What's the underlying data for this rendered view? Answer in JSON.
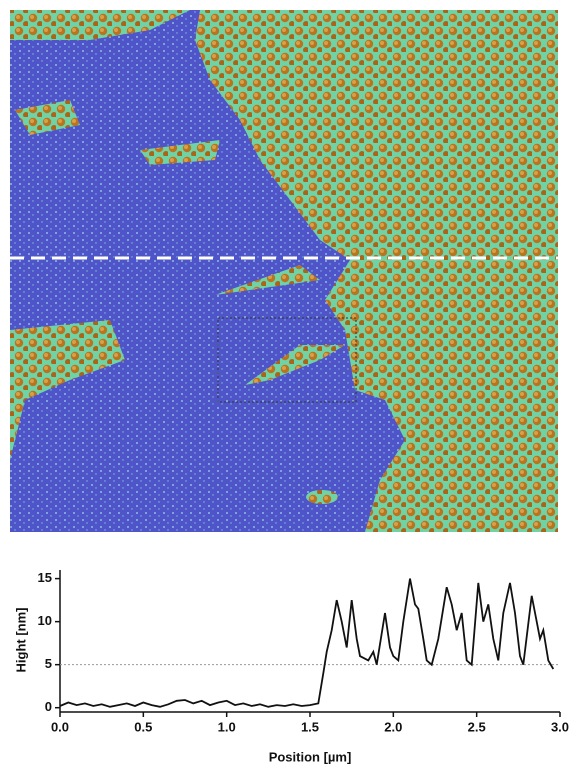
{
  "chart_data": {
    "type": "line",
    "x_label": "Position [µm]",
    "y_label": "Hight [nm]",
    "xlim": [
      0,
      3
    ],
    "ylim": [
      -0.5,
      16
    ],
    "xticks": [
      {
        "value": 0,
        "label": "0.0"
      },
      0.5,
      {
        "value": 1,
        "label": "1.0"
      },
      1.5,
      {
        "value": 2,
        "label": "2.0"
      },
      2.5,
      {
        "value": 3,
        "label": "3.0"
      }
    ],
    "yticks": [
      0,
      5,
      10,
      15
    ],
    "hline": 5,
    "series": [
      {
        "color": "#111111",
        "x": [
          0,
          0.05,
          0.1,
          0.15,
          0.2,
          0.25,
          0.3,
          0.35,
          0.4,
          0.45,
          0.5,
          0.55,
          0.6,
          0.65,
          0.7,
          0.75,
          0.8,
          0.85,
          0.9,
          0.95,
          1.0,
          1.05,
          1.1,
          1.15,
          1.2,
          1.25,
          1.3,
          1.35,
          1.4,
          1.45,
          1.5,
          1.55,
          1.58,
          1.6,
          1.63,
          1.66,
          1.69,
          1.72,
          1.75,
          1.78,
          1.8,
          1.85,
          1.88,
          1.9,
          1.95,
          1.98,
          2.0,
          2.03,
          2.06,
          2.1,
          2.13,
          2.15,
          2.18,
          2.2,
          2.23,
          2.27,
          2.32,
          2.35,
          2.38,
          2.41,
          2.44,
          2.47,
          2.51,
          2.54,
          2.57,
          2.6,
          2.63,
          2.66,
          2.7,
          2.73,
          2.76,
          2.78,
          2.83,
          2.86,
          2.88,
          2.9,
          2.93,
          2.96
        ],
        "values": [
          0.2,
          0.6,
          0.3,
          0.5,
          0.2,
          0.4,
          0.1,
          0.3,
          0.5,
          0.2,
          0.6,
          0.3,
          0.1,
          0.4,
          0.8,
          0.9,
          0.5,
          0.8,
          0.3,
          0.6,
          0.8,
          0.3,
          0.5,
          0.2,
          0.4,
          0.1,
          0.3,
          0.2,
          0.4,
          0.2,
          0.3,
          0.5,
          4,
          6.5,
          9,
          12.5,
          10,
          7,
          12.5,
          8,
          6,
          5.5,
          6.5,
          5,
          11,
          7,
          6,
          5.5,
          10,
          15,
          12,
          11.5,
          8,
          5.5,
          5,
          8,
          14,
          12,
          9,
          11,
          5.5,
          5,
          14.5,
          10,
          12,
          8,
          5.5,
          11,
          14.5,
          11,
          6,
          5,
          13,
          10,
          8,
          9,
          5.5,
          4.5
        ]
      }
    ]
  }
}
